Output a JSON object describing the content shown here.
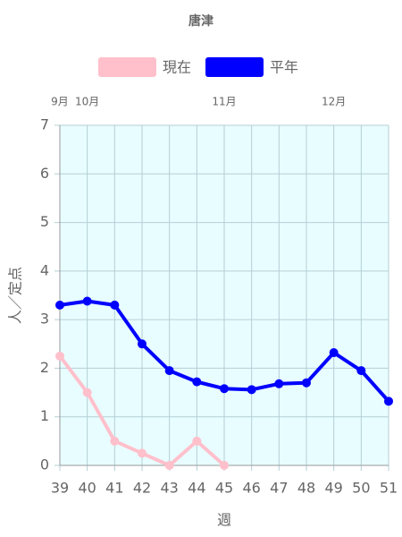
{
  "chart_data": {
    "type": "line",
    "title": "唐津",
    "x_label": "週",
    "y_label": "人／定点",
    "categories": [
      "39",
      "40",
      "41",
      "42",
      "43",
      "44",
      "45",
      "46",
      "47",
      "48",
      "49",
      "50",
      "51"
    ],
    "month_labels": [
      "9月",
      "10月",
      null,
      null,
      null,
      null,
      "11月",
      null,
      null,
      null,
      "12月",
      null,
      null
    ],
    "series": [
      {
        "name": "現在",
        "color": "#ffc0cb",
        "values": [
          2.25,
          1.5,
          0.5,
          0.25,
          0,
          0.5,
          0,
          null,
          null,
          null,
          null,
          null,
          null
        ]
      },
      {
        "name": "平年",
        "color": "#0000ff",
        "values": [
          3.3,
          3.38,
          3.3,
          2.5,
          1.95,
          1.72,
          1.58,
          1.56,
          1.68,
          1.7,
          2.32,
          1.95,
          1.32
        ]
      }
    ],
    "ylim": [
      0,
      7
    ],
    "yticks": [
      0,
      1,
      2,
      3,
      4,
      5,
      6,
      7
    ],
    "grid": true
  }
}
